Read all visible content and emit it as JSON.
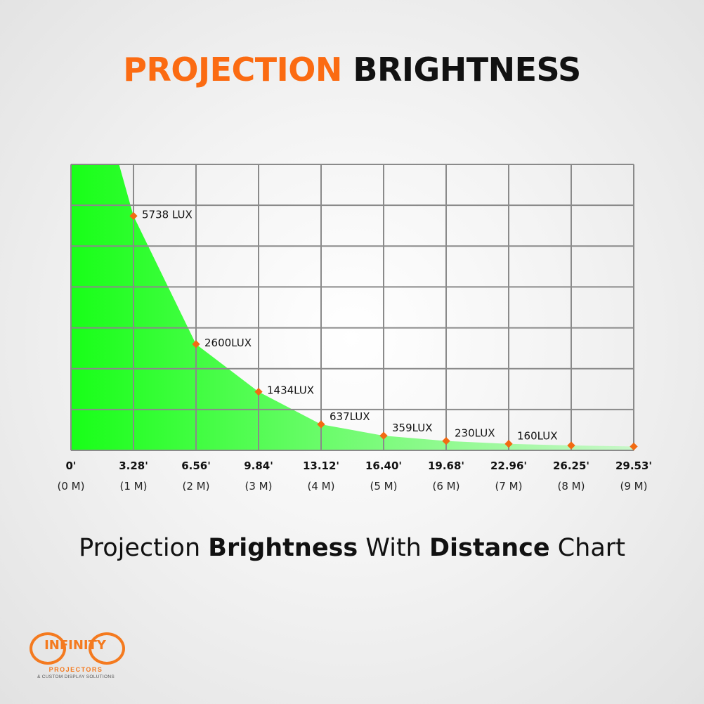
{
  "headline": {
    "word1": "PROJECTION",
    "word2": "BRIGHTNESS",
    "color_accent": "#fb6b12"
  },
  "subtitle": {
    "p1": "Projection ",
    "b1": "Brightness",
    "p2": " With ",
    "b2": "Distance",
    "p3": " Chart"
  },
  "chart_data": {
    "type": "area",
    "x": [
      1,
      2,
      3,
      4,
      5,
      6,
      7,
      8,
      9
    ],
    "values": [
      5738,
      2600,
      1434,
      637,
      359,
      230,
      160,
      120,
      95
    ],
    "point_labels": [
      "5738 LUX",
      "2600LUX",
      "1434LUX",
      "637LUX",
      "359LUX",
      "230LUX",
      "160LUX",
      "",
      ""
    ],
    "x_tick_feet": [
      "0'",
      "3.28'",
      "6.56'",
      "9.84'",
      "13.12'",
      "16.40'",
      "19.68'",
      "22.96'",
      "26.25'",
      "29.53'"
    ],
    "x_tick_meters": [
      "(0 M)",
      "(1 M)",
      "(2 M)",
      "(3 M)",
      "(4 M)",
      "(5 M)",
      "(6 M)",
      "(7 M)",
      "(8 M)",
      "(9 M)"
    ],
    "xlim": [
      0,
      9
    ],
    "ylim": [
      0,
      7000
    ],
    "grid": true,
    "fill_color": "#18ff18",
    "marker_color": "#f26a12",
    "grid_color": "#8a8a8a"
  },
  "logo": {
    "brand": "INFINITY",
    "line1": "PROJECTORS",
    "line2": "& CUSTOM DISPLAY SOLUTIONS"
  }
}
